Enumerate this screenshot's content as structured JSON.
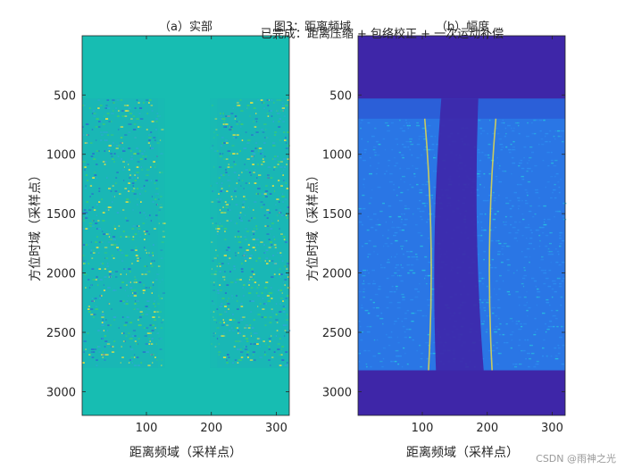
{
  "figure": {
    "title_line1": "图3：距离频域",
    "title_line2": "已完成：距离压缩 + 包络校正 + 一次运动补偿",
    "watermark": "CSDN @雨神之光"
  },
  "chart_data": [
    {
      "type": "heatmap",
      "title": "（a）实部",
      "xlabel": "距离频域（采样点）",
      "ylabel": "方位时域（采样点）",
      "xlim": [
        1,
        320
      ],
      "ylim": [
        1,
        3200
      ],
      "y_reversed": true,
      "xticks": [
        100,
        200,
        300
      ],
      "yticks": [
        500,
        1000,
        1500,
        2000,
        2500,
        3000
      ],
      "background_color": "#17bdb2",
      "signal_rows": [
        530,
        2800
      ],
      "signal_columns": [
        [
          1,
          128
        ],
        [
          198,
          320
        ]
      ],
      "notch_columns": [
        128,
        198
      ],
      "colors": [
        "#30a6d8",
        "#3ecf6a",
        "#f4e43a",
        "#2a6ad0"
      ]
    },
    {
      "type": "heatmap",
      "title": "（b）幅度",
      "xlabel": "距离频域（采样点）",
      "ylabel": "方位时域（采样点）",
      "xlim": [
        1,
        320
      ],
      "ylim": [
        1,
        3200
      ],
      "y_reversed": true,
      "xticks": [
        100,
        200,
        300
      ],
      "yticks": [
        500,
        1000,
        1500,
        2000,
        2500,
        3000
      ],
      "background_color": "#3e26a8",
      "signal_rows": [
        530,
        2820
      ],
      "strong_rows_start": 700,
      "notch_columns": [
        110,
        200
      ],
      "bright_columns": [
        112,
        205
      ],
      "colors": [
        "#2a55d8",
        "#2c8ef0",
        "#26bfe0",
        "#f0e040"
      ]
    }
  ]
}
